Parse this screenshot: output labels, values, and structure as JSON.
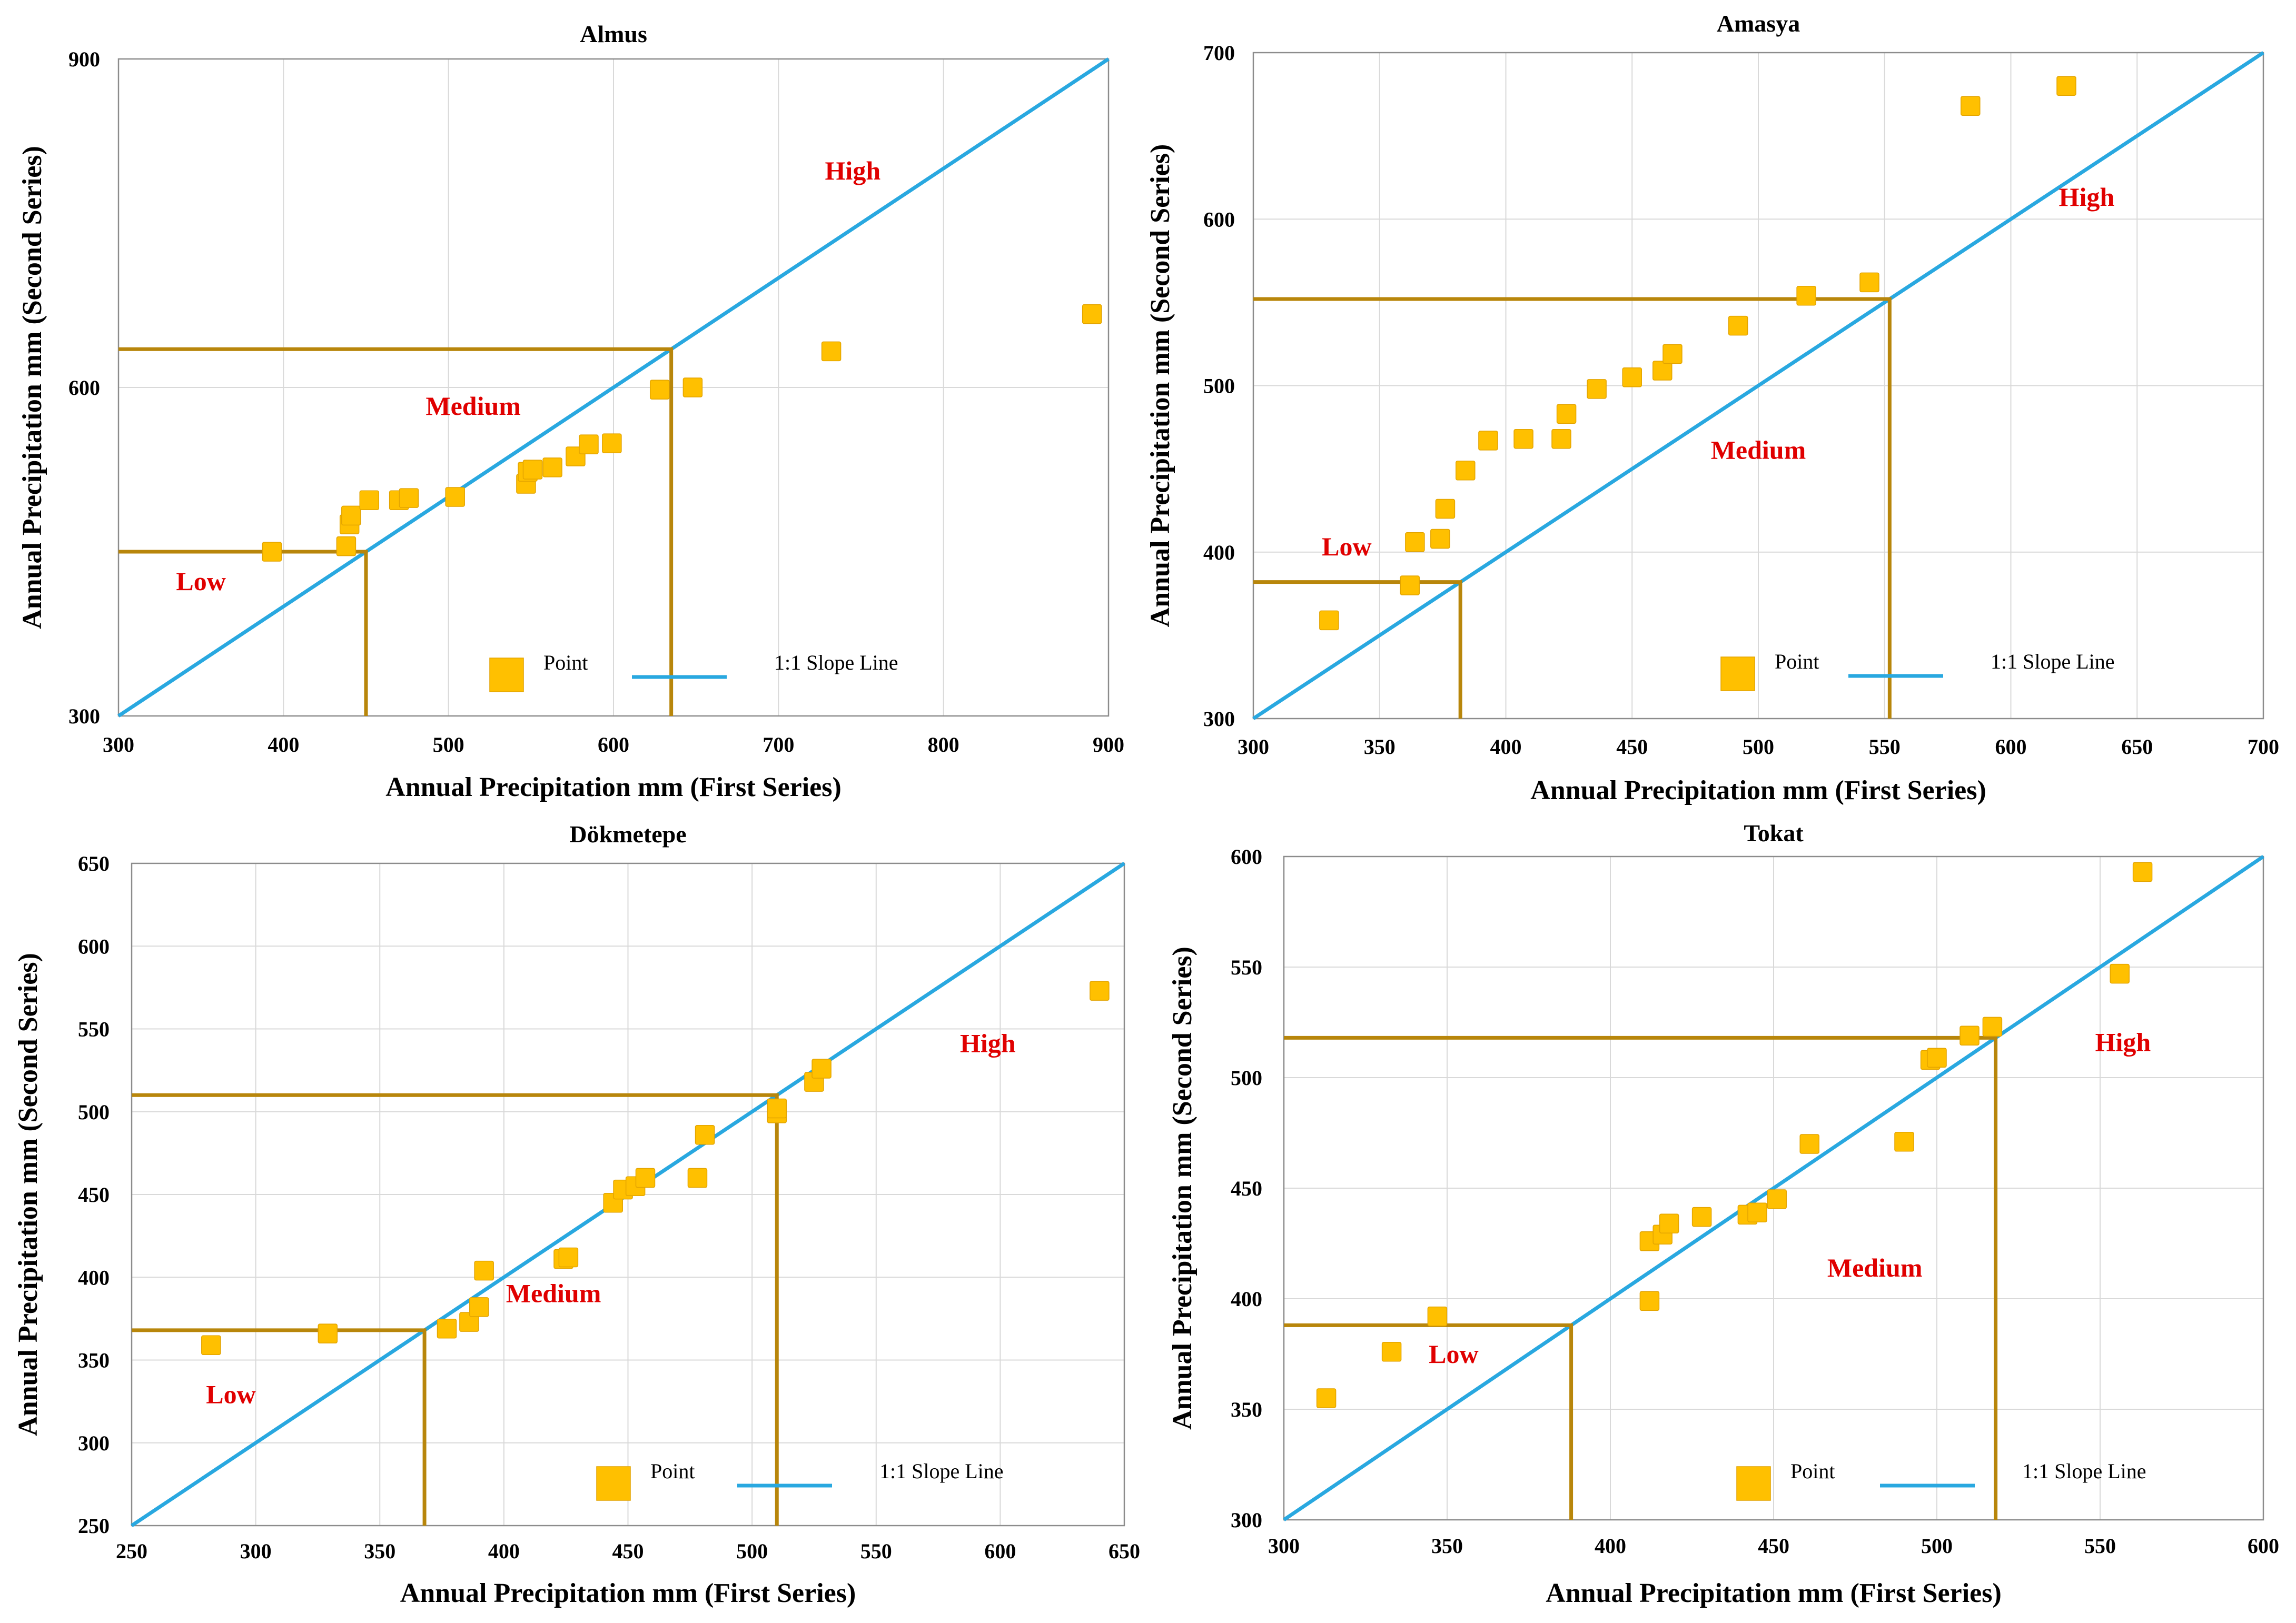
{
  "legend": {
    "point_label": "Point",
    "line_label": "1:1 Slope Line",
    "point_color": "#ffc000",
    "line_color": "#29a8e0"
  },
  "chart_data": [
    {
      "type": "scatter",
      "title": "Almus",
      "xlabel": "Annual Precipitation mm (First Series)",
      "ylabel": "Annual  Precipitation mm (Second Series)",
      "xlim": [
        300,
        900
      ],
      "ylim": [
        300,
        900
      ],
      "xticks": [
        300,
        400,
        500,
        600,
        700,
        800,
        900
      ],
      "yticks": [
        300,
        600,
        900
      ],
      "grid": true,
      "low_threshold": 450,
      "high_threshold": 635,
      "zone_labels": [
        {
          "text": "Low",
          "x": 350,
          "y": 415
        },
        {
          "text": "Medium",
          "x": 515,
          "y": 575
        },
        {
          "text": "High",
          "x": 745,
          "y": 790
        }
      ],
      "points": [
        {
          "x": 393,
          "y": 450
        },
        {
          "x": 438,
          "y": 455
        },
        {
          "x": 440,
          "y": 475
        },
        {
          "x": 441,
          "y": 483
        },
        {
          "x": 452,
          "y": 497
        },
        {
          "x": 470,
          "y": 497
        },
        {
          "x": 476,
          "y": 499
        },
        {
          "x": 504,
          "y": 500
        },
        {
          "x": 547,
          "y": 512
        },
        {
          "x": 548,
          "y": 523
        },
        {
          "x": 551,
          "y": 525
        },
        {
          "x": 563,
          "y": 527
        },
        {
          "x": 577,
          "y": 537
        },
        {
          "x": 585,
          "y": 548
        },
        {
          "x": 599,
          "y": 549
        },
        {
          "x": 628,
          "y": 598
        },
        {
          "x": 648,
          "y": 600
        },
        {
          "x": 732,
          "y": 633
        },
        {
          "x": 890,
          "y": 667
        }
      ]
    },
    {
      "type": "scatter",
      "title": "Amasya",
      "xlabel": "Annual Precipitation mm (First Series)",
      "ylabel": "Annual Precipitation mm (Second Series)",
      "xlim": [
        300,
        700
      ],
      "ylim": [
        300,
        700
      ],
      "xticks": [
        300,
        350,
        400,
        450,
        500,
        550,
        600,
        650,
        700
      ],
      "yticks": [
        300,
        400,
        500,
        600,
        700
      ],
      "grid": true,
      "low_threshold": 382,
      "high_threshold": 552,
      "zone_labels": [
        {
          "text": "Low",
          "x": 337,
          "y": 398
        },
        {
          "text": "Medium",
          "x": 500,
          "y": 456
        },
        {
          "text": "High",
          "x": 630,
          "y": 608
        }
      ],
      "points": [
        {
          "x": 330,
          "y": 359
        },
        {
          "x": 362,
          "y": 380
        },
        {
          "x": 364,
          "y": 406
        },
        {
          "x": 374,
          "y": 408
        },
        {
          "x": 376,
          "y": 426
        },
        {
          "x": 384,
          "y": 449
        },
        {
          "x": 393,
          "y": 467
        },
        {
          "x": 407,
          "y": 468
        },
        {
          "x": 422,
          "y": 468
        },
        {
          "x": 424,
          "y": 483
        },
        {
          "x": 436,
          "y": 498
        },
        {
          "x": 450,
          "y": 505
        },
        {
          "x": 462,
          "y": 509
        },
        {
          "x": 466,
          "y": 519
        },
        {
          "x": 492,
          "y": 536
        },
        {
          "x": 519,
          "y": 554
        },
        {
          "x": 544,
          "y": 562
        },
        {
          "x": 584,
          "y": 668
        },
        {
          "x": 622,
          "y": 680
        }
      ]
    },
    {
      "type": "scatter",
      "title": "Dökmetepe",
      "xlabel": "Annual Precipitation mm (First Series)",
      "ylabel": "Annual Precipitation mm (Second Series)",
      "xlim": [
        250,
        650
      ],
      "ylim": [
        250,
        650
      ],
      "xticks": [
        250,
        300,
        350,
        400,
        450,
        500,
        550,
        600,
        650
      ],
      "yticks": [
        250,
        300,
        350,
        400,
        450,
        500,
        550,
        600,
        650
      ],
      "grid": true,
      "low_threshold": 368,
      "high_threshold": 510,
      "zone_labels": [
        {
          "text": "Low",
          "x": 290,
          "y": 324
        },
        {
          "text": "Medium",
          "x": 420,
          "y": 385
        },
        {
          "text": "High",
          "x": 595,
          "y": 536
        }
      ],
      "points": [
        {
          "x": 282,
          "y": 359
        },
        {
          "x": 329,
          "y": 366
        },
        {
          "x": 377,
          "y": 369
        },
        {
          "x": 386,
          "y": 373
        },
        {
          "x": 390,
          "y": 382
        },
        {
          "x": 392,
          "y": 404
        },
        {
          "x": 424,
          "y": 411
        },
        {
          "x": 426,
          "y": 412
        },
        {
          "x": 444,
          "y": 445
        },
        {
          "x": 448,
          "y": 453
        },
        {
          "x": 453,
          "y": 455
        },
        {
          "x": 457,
          "y": 460
        },
        {
          "x": 478,
          "y": 460
        },
        {
          "x": 481,
          "y": 486
        },
        {
          "x": 510,
          "y": 499
        },
        {
          "x": 510,
          "y": 502
        },
        {
          "x": 525,
          "y": 518
        },
        {
          "x": 528,
          "y": 526
        },
        {
          "x": 640,
          "y": 573
        }
      ]
    },
    {
      "type": "scatter",
      "title": "Tokat",
      "xlabel": "Annual Precipitation mm (First Series)",
      "ylabel": "Annual Precipitation mm (Second Series)",
      "xlim": [
        300,
        600
      ],
      "ylim": [
        300,
        600
      ],
      "xticks": [
        300,
        350,
        400,
        450,
        500,
        550,
        600
      ],
      "yticks": [
        300,
        350,
        400,
        450,
        500,
        550,
        600
      ],
      "grid": true,
      "low_threshold": 388,
      "high_threshold": 518,
      "zone_labels": [
        {
          "text": "Low",
          "x": 352,
          "y": 371
        },
        {
          "text": "Medium",
          "x": 481,
          "y": 410
        },
        {
          "text": "High",
          "x": 557,
          "y": 512
        }
      ],
      "points": [
        {
          "x": 313,
          "y": 355
        },
        {
          "x": 333,
          "y": 376
        },
        {
          "x": 347,
          "y": 392
        },
        {
          "x": 412,
          "y": 399
        },
        {
          "x": 412,
          "y": 426
        },
        {
          "x": 416,
          "y": 429
        },
        {
          "x": 418,
          "y": 434
        },
        {
          "x": 428,
          "y": 437
        },
        {
          "x": 442,
          "y": 438
        },
        {
          "x": 445,
          "y": 439
        },
        {
          "x": 451,
          "y": 445
        },
        {
          "x": 461,
          "y": 470
        },
        {
          "x": 490,
          "y": 471
        },
        {
          "x": 498,
          "y": 508
        },
        {
          "x": 500,
          "y": 509
        },
        {
          "x": 510,
          "y": 519
        },
        {
          "x": 517,
          "y": 523
        },
        {
          "x": 556,
          "y": 547
        },
        {
          "x": 563,
          "y": 593
        }
      ]
    }
  ]
}
